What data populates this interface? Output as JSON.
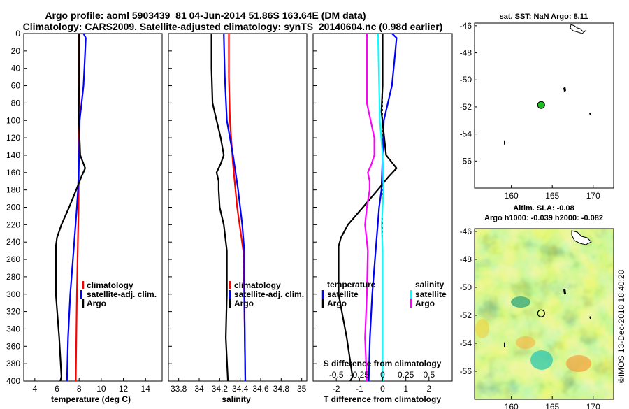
{
  "title_line1": "Argo profile: aoml 5903439_81 04-Jun-2014 51.86S 163.64E (DM data)",
  "title_line2": "Climatology: CARS2009. Satellite-adjusted climatology: synTS_20140604.nc (0.98d earlier)",
  "watermark": "©IMOS 13-Dec-2018 18:40:28",
  "colors": {
    "climatology": "#ff0000",
    "satellite": "#0000ff",
    "argo": "#000000",
    "t_satellite": "#0000ff",
    "s_satellite": "#00ffff",
    "s_argo": "#ff00ff",
    "float_marker": "#22bb22"
  },
  "chart_data": [
    {
      "type": "line",
      "id": "temperature",
      "xlabel": "temperature (deg C)",
      "ylabel": "",
      "xlim": [
        3,
        15.5
      ],
      "ylim": [
        400,
        0
      ],
      "xticks": [
        4,
        6,
        8,
        10,
        12,
        14
      ],
      "xtick_labels": [
        "4",
        "6",
        "8",
        "10",
        "12",
        "14"
      ],
      "yticks": [
        0,
        20,
        40,
        60,
        80,
        100,
        120,
        140,
        160,
        180,
        200,
        220,
        240,
        260,
        280,
        300,
        320,
        340,
        360,
        380,
        400
      ],
      "ytick_labels": [
        "0",
        "20",
        "40",
        "60",
        "80",
        "100",
        "120",
        "140",
        "160",
        "180",
        "200",
        "220",
        "240",
        "260",
        "280",
        "300",
        "320",
        "340",
        "360",
        "380",
        "400"
      ],
      "legend": [
        "climatology",
        "satellite-adj. clim.",
        "Argo"
      ],
      "series": [
        {
          "name": "climatology",
          "color": "red",
          "depth": [
            0,
            100,
            200,
            300,
            400
          ],
          "values": [
            8.0,
            8.0,
            7.95,
            7.8,
            7.7
          ]
        },
        {
          "name": "satellite-adj. clim.",
          "color": "blue",
          "depth": [
            0,
            5,
            20,
            60,
            100,
            140,
            180,
            200,
            250,
            300,
            350,
            400
          ],
          "values": [
            8.4,
            8.6,
            8.55,
            8.4,
            8.05,
            8.0,
            7.9,
            7.8,
            7.5,
            7.2,
            7.0,
            6.9
          ]
        },
        {
          "name": "Argo",
          "color": "black",
          "depth": [
            0,
            60,
            90,
            140,
            155,
            165,
            178,
            200,
            220,
            235,
            245,
            300,
            350,
            395,
            400
          ],
          "values": [
            8.0,
            8.0,
            7.95,
            8.1,
            8.55,
            8.2,
            7.8,
            7.1,
            6.4,
            6.0,
            5.9,
            5.9,
            6.2,
            6.4,
            6.3
          ]
        }
      ]
    },
    {
      "type": "line",
      "id": "salinity",
      "xlabel": "salinity",
      "ylabel": "",
      "xlim": [
        33.7,
        35.05
      ],
      "ylim": [
        400,
        0
      ],
      "xticks": [
        33.8,
        34.0,
        34.2,
        34.4,
        34.6,
        34.8,
        35.0
      ],
      "xtick_labels": [
        "33.8",
        "34",
        "34.2",
        "34.4",
        "34.6",
        "34.8",
        "35"
      ],
      "legend": [
        "climatology",
        "satellite-adj. clim.",
        "Argo"
      ],
      "series": [
        {
          "name": "climatology",
          "color": "red",
          "depth": [
            0,
            50,
            100,
            150,
            200,
            250,
            300,
            400
          ],
          "values": [
            34.29,
            34.29,
            34.3,
            34.33,
            34.37,
            34.43,
            34.44,
            34.45
          ]
        },
        {
          "name": "satellite-adj. clim.",
          "color": "blue",
          "depth": [
            0,
            50,
            100,
            140,
            180,
            220,
            250,
            300,
            400
          ],
          "values": [
            34.24,
            34.25,
            34.27,
            34.33,
            34.38,
            34.42,
            34.44,
            34.44,
            34.45
          ]
        },
        {
          "name": "Argo",
          "color": "black",
          "depth": [
            0,
            40,
            80,
            100,
            120,
            140,
            150,
            160,
            170,
            180,
            200,
            220,
            250,
            300,
            350,
            400
          ],
          "values": [
            34.12,
            34.12,
            34.13,
            34.17,
            34.21,
            34.24,
            34.21,
            34.17,
            34.19,
            34.19,
            34.2,
            34.24,
            34.27,
            34.27,
            34.26,
            34.28
          ]
        }
      ]
    },
    {
      "type": "line",
      "id": "difference",
      "xlabel": "T difference from climatology",
      "top_axis_label": "S difference from climatology",
      "xlim": [
        -3,
        3
      ],
      "s_xlim": [
        -0.75,
        0.75
      ],
      "ylim": [
        400,
        0
      ],
      "xticks": [
        -2,
        -1,
        0,
        1,
        2
      ],
      "xtick_labels": [
        "-2",
        "-1",
        "0",
        "1",
        "2"
      ],
      "s_xticks": [
        -0.5,
        -0.25,
        0,
        0.25,
        0.5
      ],
      "s_xtick_labels": [
        "-0.5",
        "-0.25",
        "0",
        "0.25",
        "0.5"
      ],
      "legend_left_title": "temperature",
      "legend_right_title": "salinity",
      "legend_left": [
        "satellite",
        "Argo"
      ],
      "legend_right": [
        "satellite",
        "Argo"
      ],
      "series": [
        {
          "name": "T satellite",
          "color": "blue",
          "depth": [
            0,
            5,
            20,
            60,
            100,
            140,
            180,
            200,
            250,
            300,
            350,
            400
          ],
          "values": [
            0.4,
            0.6,
            0.55,
            0.4,
            0.05,
            0.0,
            -0.05,
            -0.15,
            -0.3,
            -0.45,
            -0.55,
            -0.6
          ]
        },
        {
          "name": "T Argo",
          "color": "black",
          "depth": [
            0,
            60,
            90,
            140,
            155,
            165,
            178,
            200,
            220,
            235,
            245,
            300,
            350,
            395,
            400
          ],
          "values": [
            0.0,
            0.0,
            -0.05,
            0.15,
            0.6,
            0.25,
            -0.15,
            -0.85,
            -1.5,
            -1.8,
            -1.9,
            -1.9,
            -1.55,
            -1.3,
            -1.4
          ]
        },
        {
          "name": "S satellite",
          "color": "cyan",
          "depth": [
            0,
            50,
            100,
            140,
            180,
            220,
            250,
            300,
            400
          ],
          "values": [
            -0.05,
            -0.04,
            -0.03,
            0.0,
            0.01,
            -0.01,
            0.0,
            0.0,
            0.0
          ]
        },
        {
          "name": "S Argo",
          "color": "magenta",
          "depth": [
            0,
            40,
            80,
            100,
            120,
            140,
            150,
            160,
            170,
            180,
            200,
            220,
            250,
            300,
            350,
            400
          ],
          "values": [
            -0.17,
            -0.17,
            -0.17,
            -0.13,
            -0.09,
            -0.09,
            -0.12,
            -0.16,
            -0.14,
            -0.14,
            -0.17,
            -0.19,
            -0.16,
            -0.17,
            -0.19,
            -0.17
          ]
        }
      ]
    },
    {
      "type": "scatter",
      "id": "sst_map",
      "title": "sat. SST: NaN Argo: 8.11",
      "xlim": [
        155.5,
        172.5
      ],
      "ylim": [
        -58,
        -45.8
      ],
      "xticks": [
        160,
        165,
        170
      ],
      "xtick_labels": [
        "160",
        "165",
        "170"
      ],
      "yticks": [
        -46,
        -48,
        -50,
        -52,
        -54,
        -56
      ],
      "ytick_labels": [
        "-46",
        "-48",
        "-50",
        "-52",
        "-54",
        "-56"
      ],
      "float_position": {
        "lon": 163.64,
        "lat": -51.86
      }
    },
    {
      "type": "heatmap",
      "id": "sla_map",
      "title_line1": "Altim. SLA: -0.08",
      "title_line2": "Argo h1000: -0.039 h2000: -0.082",
      "xlim": [
        155.5,
        172.5
      ],
      "ylim": [
        -58,
        -45.8
      ],
      "xticks": [
        160,
        165,
        170
      ],
      "xtick_labels": [
        "160",
        "165",
        "170"
      ],
      "yticks": [
        -46,
        -48,
        -50,
        -52,
        -54,
        -56
      ],
      "ytick_labels": [
        "-46",
        "-48",
        "-50",
        "-52",
        "-54",
        "-56"
      ],
      "float_position": {
        "lon": 163.64,
        "lat": -51.86
      }
    }
  ]
}
